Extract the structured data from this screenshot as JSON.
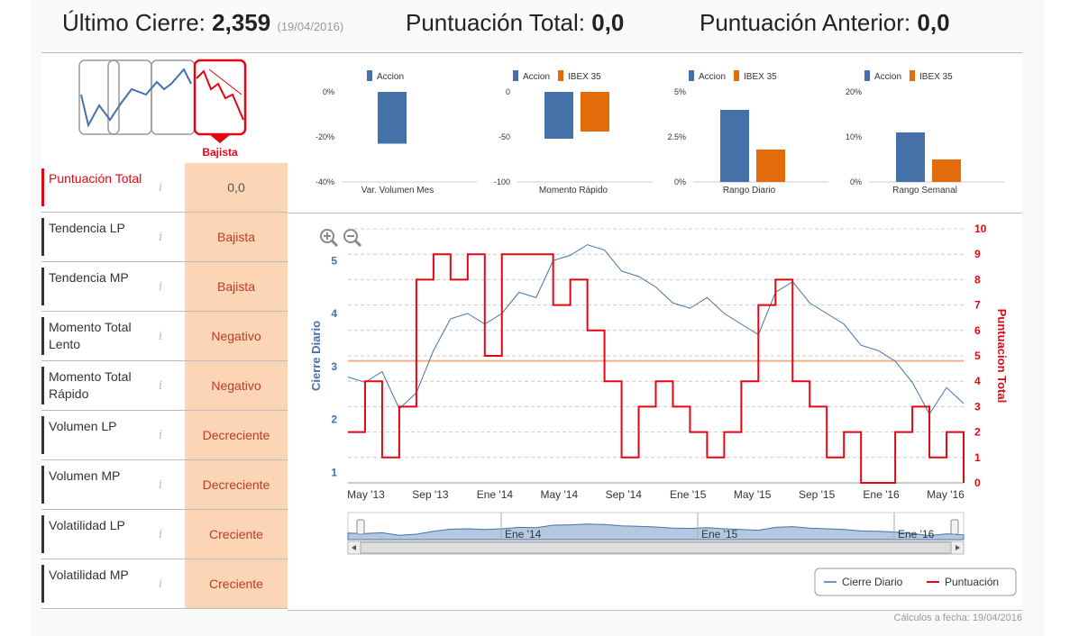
{
  "header": {
    "last_close_label": "Último Cierre:",
    "last_close_value": "2,359",
    "last_close_date": "(19/04/2016)",
    "total_score_label": "Puntuación Total:",
    "total_score_value": "0,0",
    "prev_score_label": "Puntuación Anterior:",
    "prev_score_value": "0,0"
  },
  "trend_indicator": {
    "label": "Bajista",
    "active_color": "#e30613"
  },
  "rows": [
    {
      "label": "Puntuación Total",
      "value": "0,0"
    },
    {
      "label": "Tendencia LP",
      "value": "Bajista"
    },
    {
      "label": "Tendencia MP",
      "value": "Bajista"
    },
    {
      "label": "Momento Total Lento",
      "value": "Negativo"
    },
    {
      "label": "Momento Total Rápido",
      "value": "Negativo"
    },
    {
      "label": "Volumen LP",
      "value": "Decreciente"
    },
    {
      "label": "Volumen MP",
      "value": "Decreciente"
    },
    {
      "label": "Volatilidad LP",
      "value": "Creciente"
    },
    {
      "label": "Volatilidad MP",
      "value": "Creciente"
    }
  ],
  "info_glyph": "i",
  "footer": "Cálculos a fecha: 19/04/2016",
  "colors": {
    "accion": "#4472a8",
    "ibex": "#e36c0a",
    "score": "#e30613",
    "threshold": "#f4b183"
  },
  "chart_data": [
    {
      "type": "bar",
      "title": "Var. Volumen Mes",
      "series": [
        {
          "name": "Accion",
          "values": [
            -23
          ]
        }
      ],
      "yticks": [
        "0%",
        "-20%",
        "-40%"
      ],
      "ylim": [
        -40,
        0
      ]
    },
    {
      "type": "bar",
      "title": "Momento Rápido",
      "series": [
        {
          "name": "Accion",
          "values": [
            -52
          ]
        },
        {
          "name": "IBEX 35",
          "values": [
            -44
          ]
        }
      ],
      "yticks": [
        "0",
        "-50",
        "-100"
      ],
      "ylim": [
        -100,
        0
      ]
    },
    {
      "type": "bar",
      "title": "Rango Diario",
      "series": [
        {
          "name": "Accion",
          "values": [
            4.0
          ]
        },
        {
          "name": "IBEX 35",
          "values": [
            1.8
          ]
        }
      ],
      "yticks": [
        "5%",
        "2.5%",
        "0%"
      ],
      "ylim": [
        0,
        5
      ]
    },
    {
      "type": "bar",
      "title": "Rango Semanal",
      "series": [
        {
          "name": "Accion",
          "values": [
            11
          ]
        },
        {
          "name": "IBEX 35",
          "values": [
            5
          ]
        }
      ],
      "yticks": [
        "20%",
        "10%",
        "0%"
      ],
      "ylim": [
        0,
        20
      ]
    },
    {
      "type": "line",
      "ylabel": "Cierre Diario",
      "y2label": "Puntuacion Total",
      "ylim": [
        0.8,
        5.6
      ],
      "y2lim": [
        0,
        10
      ],
      "yticks": [
        "1",
        "2",
        "3",
        "4",
        "5"
      ],
      "y2ticks": [
        "0",
        "1",
        "2",
        "3",
        "4",
        "5",
        "6",
        "7",
        "8",
        "9",
        "10"
      ],
      "xticks": [
        "May '13",
        "Sep '13",
        "Ene '14",
        "May '14",
        "Sep '14",
        "Ene '15",
        "May '15",
        "Sep '15",
        "Ene '16",
        "May '16"
      ],
      "navigator_labels": [
        "Ene '14",
        "Ene '15",
        "Ene '16"
      ],
      "threshold": 4.8,
      "legend": [
        "Cierre Diario",
        "Puntuación"
      ],
      "series": [
        {
          "name": "Cierre Diario",
          "x": [
            0,
            1,
            2,
            3,
            4,
            5,
            6,
            7,
            8,
            9,
            10,
            11,
            12,
            13,
            14,
            15,
            16,
            17,
            18,
            19,
            20,
            21,
            22,
            23,
            24,
            25,
            26,
            27,
            28,
            29,
            30,
            31,
            32,
            33,
            34,
            35,
            36
          ],
          "values": [
            2.8,
            2.7,
            2.9,
            2.2,
            2.5,
            3.3,
            3.9,
            4.0,
            3.8,
            4.0,
            4.4,
            4.3,
            5.0,
            5.1,
            5.3,
            5.2,
            4.8,
            4.7,
            4.5,
            4.2,
            4.1,
            4.3,
            4.0,
            3.8,
            3.6,
            4.4,
            4.6,
            4.2,
            4.0,
            3.8,
            3.4,
            3.3,
            3.1,
            2.7,
            2.1,
            2.6,
            2.3
          ]
        },
        {
          "name": "Puntuación",
          "x": [
            0,
            1,
            2,
            3,
            4,
            5,
            6,
            7,
            8,
            9,
            10,
            11,
            12,
            13,
            14,
            15,
            16,
            17,
            18,
            19,
            20,
            21,
            22,
            23,
            24,
            25,
            26,
            27,
            28,
            29,
            30,
            31,
            32,
            33,
            34,
            35,
            36
          ],
          "values": [
            2,
            4,
            1,
            3,
            8,
            9,
            8,
            9,
            5,
            9,
            9,
            9,
            7,
            8,
            6,
            4,
            1,
            3,
            4,
            3,
            2,
            1,
            2,
            4,
            7,
            8,
            4,
            3,
            1,
            2,
            0,
            0,
            2,
            3,
            1,
            2,
            0
          ]
        }
      ]
    }
  ]
}
